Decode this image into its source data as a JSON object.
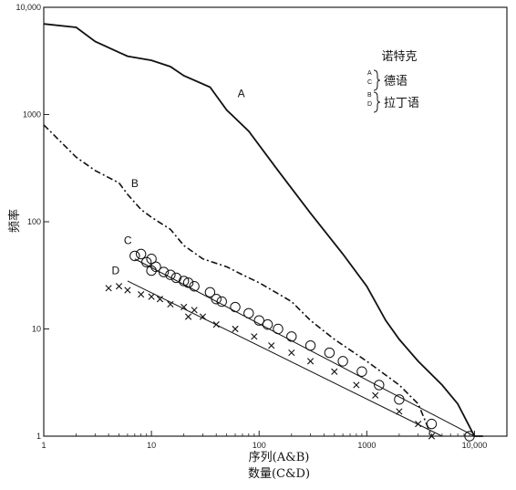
{
  "chart_data": {
    "type": "scatter",
    "xscale": "log",
    "yscale": "log",
    "xlim": [
      1,
      20000
    ],
    "ylim": [
      1,
      10000
    ],
    "grid": false,
    "xticks": [
      "1",
      "10",
      "100",
      "1000",
      "10,000"
    ],
    "yticks": [
      "1",
      "10",
      "100",
      "1000",
      "10,000"
    ],
    "ylabel": "频率",
    "xlabel_line1": "序列(A&B)",
    "xlabel_line2": "数量(C&D)",
    "legend": {
      "title": "诺特克",
      "groups": [
        {
          "letters": [
            "A",
            "C"
          ],
          "label": "德语"
        },
        {
          "letters": [
            "B",
            "D"
          ],
          "label": "拉丁语"
        }
      ]
    },
    "series": [
      {
        "name": "A",
        "style": "solid line",
        "points": [
          [
            1,
            7000
          ],
          [
            2,
            6500
          ],
          [
            3,
            4800
          ],
          [
            5,
            3800
          ],
          [
            6,
            3500
          ],
          [
            10,
            3200
          ],
          [
            15,
            2800
          ],
          [
            20,
            2300
          ],
          [
            35,
            1800
          ],
          [
            50,
            1100
          ],
          [
            80,
            700
          ],
          [
            150,
            300
          ],
          [
            300,
            120
          ],
          [
            600,
            50
          ],
          [
            1000,
            25
          ],
          [
            1500,
            12
          ],
          [
            2000,
            8
          ],
          [
            3000,
            5
          ],
          [
            5000,
            3
          ],
          [
            7000,
            2
          ],
          [
            10000,
            1
          ]
        ]
      },
      {
        "name": "B",
        "style": "dash-dot line",
        "points": [
          [
            1,
            800
          ],
          [
            2,
            400
          ],
          [
            3,
            300
          ],
          [
            5,
            230
          ],
          [
            6,
            180
          ],
          [
            8,
            130
          ],
          [
            10,
            110
          ],
          [
            15,
            85
          ],
          [
            20,
            60
          ],
          [
            30,
            45
          ],
          [
            50,
            38
          ],
          [
            70,
            32
          ],
          [
            100,
            27
          ],
          [
            200,
            18
          ],
          [
            300,
            12
          ],
          [
            500,
            8
          ],
          [
            1000,
            5
          ],
          [
            2000,
            3
          ],
          [
            3000,
            2
          ],
          [
            4000,
            1
          ]
        ]
      },
      {
        "name": "C",
        "style": "circles with fitted line",
        "points": [
          [
            7,
            48
          ],
          [
            8,
            50
          ],
          [
            9,
            42
          ],
          [
            10,
            45
          ],
          [
            10,
            35
          ],
          [
            11,
            38
          ],
          [
            13,
            34
          ],
          [
            15,
            32
          ],
          [
            17,
            30
          ],
          [
            20,
            28
          ],
          [
            22,
            27
          ],
          [
            25,
            25
          ],
          [
            35,
            22
          ],
          [
            40,
            19
          ],
          [
            45,
            18
          ],
          [
            60,
            16
          ],
          [
            80,
            14
          ],
          [
            100,
            12
          ],
          [
            120,
            11
          ],
          [
            150,
            10
          ],
          [
            200,
            8.5
          ],
          [
            300,
            7
          ],
          [
            450,
            6
          ],
          [
            600,
            5
          ],
          [
            900,
            4
          ],
          [
            1300,
            3
          ],
          [
            2000,
            2.2
          ],
          [
            4000,
            1.3
          ],
          [
            9000,
            1
          ]
        ],
        "fit": [
          [
            7,
            45
          ],
          [
            10000,
            1
          ]
        ]
      },
      {
        "name": "D",
        "style": "crosses with fitted line",
        "points": [
          [
            4,
            24
          ],
          [
            5,
            25
          ],
          [
            6,
            23
          ],
          [
            8,
            21
          ],
          [
            10,
            20
          ],
          [
            12,
            19
          ],
          [
            15,
            17
          ],
          [
            20,
            16
          ],
          [
            22,
            13
          ],
          [
            25,
            15
          ],
          [
            30,
            13
          ],
          [
            40,
            11
          ],
          [
            60,
            10
          ],
          [
            90,
            8.5
          ],
          [
            130,
            7
          ],
          [
            200,
            6
          ],
          [
            300,
            5
          ],
          [
            500,
            4
          ],
          [
            800,
            3
          ],
          [
            1200,
            2.4
          ],
          [
            2000,
            1.7
          ],
          [
            3000,
            1.3
          ],
          [
            4000,
            1
          ]
        ],
        "fit": [
          [
            6,
            28
          ],
          [
            5000,
            1
          ]
        ]
      }
    ]
  }
}
